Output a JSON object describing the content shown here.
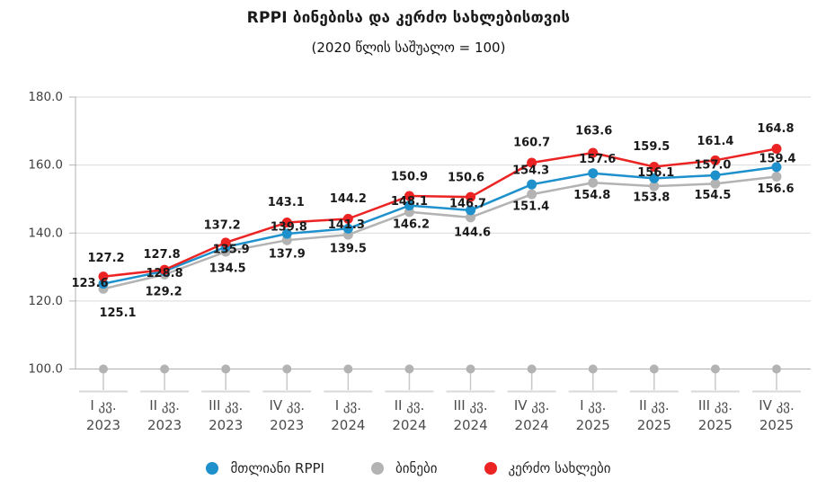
{
  "chart": {
    "title": "RPPI ბინებისა და კერძო სახლებისთვის",
    "subtitle": "(2020 წლის საშუალო = 100)"
  },
  "chart_data": {
    "type": "line",
    "title": "RPPI ბინებისა და კერძო სახლებისთვის",
    "subtitle": "(2020 წლის საშუალო = 100)",
    "xlabel": "",
    "ylabel": "",
    "ylim": [
      100,
      180
    ],
    "ytick_step": 20,
    "ytick_decimals": 1,
    "grid": true,
    "legend_position": "bottom",
    "categories": [
      {
        "quarter": "I კვ.",
        "year": "2023"
      },
      {
        "quarter": "II კვ.",
        "year": "2023"
      },
      {
        "quarter": "III კვ.",
        "year": "2023"
      },
      {
        "quarter": "IV კვ.",
        "year": "2023"
      },
      {
        "quarter": "I კვ.",
        "year": "2024"
      },
      {
        "quarter": "II კვ.",
        "year": "2024"
      },
      {
        "quarter": "III კვ.",
        "year": "2024"
      },
      {
        "quarter": "IV კვ.",
        "year": "2024"
      },
      {
        "quarter": "I კვ.",
        "year": "2025"
      },
      {
        "quarter": "II კვ.",
        "year": "2025"
      },
      {
        "quarter": "III კვ.",
        "year": "2025"
      },
      {
        "quarter": "IV კვ.",
        "year": "2025"
      }
    ],
    "series": [
      {
        "name": "მთლიანი RPPI",
        "color": "#1e91cd",
        "values": [
          125.1,
          128.8,
          135.9,
          139.8,
          141.3,
          148.1,
          146.7,
          154.3,
          157.6,
          156.1,
          157.0,
          159.4
        ]
      },
      {
        "name": "ბინები",
        "color": "#b3b3b3",
        "values": [
          123.6,
          127.8,
          134.5,
          137.9,
          139.5,
          146.2,
          144.6,
          151.4,
          154.8,
          153.8,
          154.5,
          156.6
        ]
      },
      {
        "name": "კერძო სახლები",
        "color": "#eb2323",
        "values": [
          127.2,
          129.2,
          137.2,
          143.1,
          144.2,
          150.9,
          150.6,
          160.7,
          163.6,
          159.5,
          161.4,
          164.8
        ]
      }
    ],
    "baseline_markers_value": 100
  }
}
